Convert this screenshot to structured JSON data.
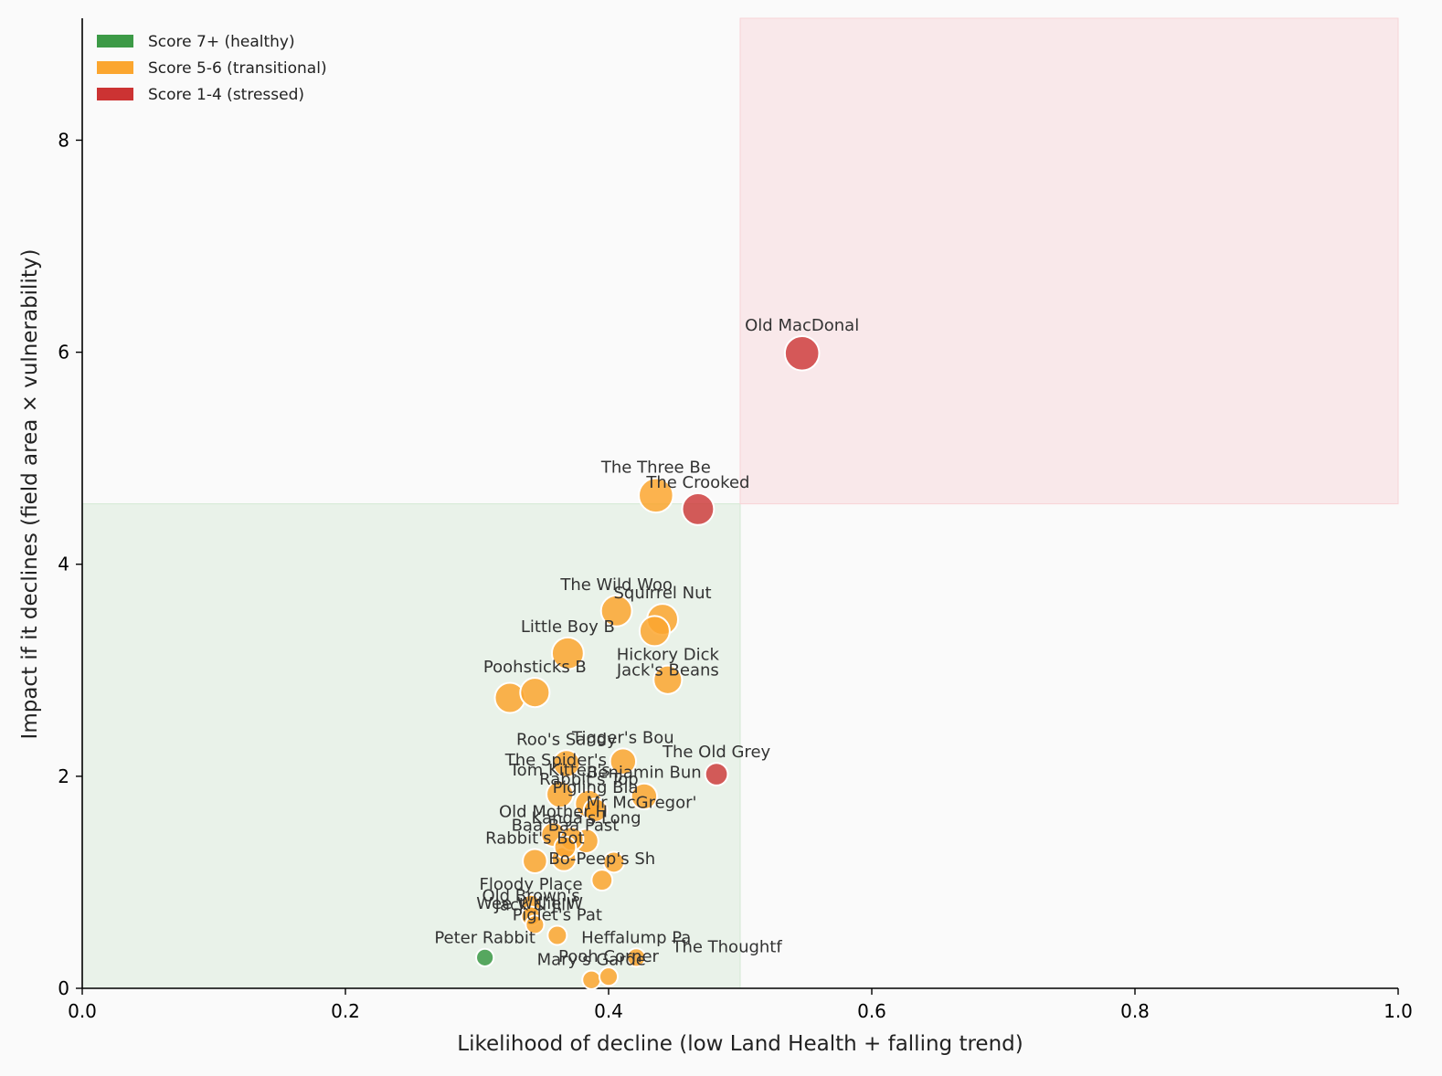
{
  "chart_data": {
    "type": "scatter",
    "title": "",
    "xlabel": "Likelihood of decline (low Land Health + falling trend)",
    "ylabel": "Impact if it declines (field area × vulnerability)",
    "xlim": [
      0.0,
      1.0
    ],
    "ylim": [
      0,
      9.15
    ],
    "xticks": [
      0.0,
      0.2,
      0.4,
      0.6,
      0.8,
      1.0
    ],
    "xtick_labels": [
      "0.0",
      "0.2",
      "0.4",
      "0.6",
      "0.8",
      "1.0"
    ],
    "yticks": [
      0,
      2,
      4,
      6,
      8
    ],
    "ytick_labels": [
      "0",
      "2",
      "4",
      "6",
      "8"
    ],
    "grid": false,
    "legend_position": "top-left",
    "regions": [
      {
        "x": [
          0.0,
          0.5
        ],
        "y": [
          0,
          4.57
        ],
        "color": "#d4e8d4"
      },
      {
        "x": [
          0.5,
          1.0
        ],
        "y": [
          4.57,
          9.15
        ],
        "color": "#f8d3d6"
      }
    ],
    "legend": [
      {
        "label": "Score 7+ (healthy)",
        "color": "#3c9a46"
      },
      {
        "label": "Score 5-6 (transitional)",
        "color": "#fba62f"
      },
      {
        "label": "Score 1-4 (stressed)",
        "color": "#cc3333"
      }
    ],
    "colors": {
      "healthy": "#3c9a46",
      "transitional": "#fba62f",
      "stressed": "#cc3333"
    },
    "points": [
      {
        "label": "Old MacDonal",
        "x": 0.547,
        "y": 5.99,
        "size": 3.0,
        "group": "stressed"
      },
      {
        "label": "The Three Be",
        "x": 0.436,
        "y": 4.65,
        "size": 3.0,
        "group": "transitional"
      },
      {
        "label": "The Crooked",
        "x": 0.468,
        "y": 4.52,
        "size": 2.7,
        "group": "stressed"
      },
      {
        "label": "The Wild Woo",
        "x": 0.406,
        "y": 3.56,
        "size": 2.6,
        "group": "transitional"
      },
      {
        "label": "Squirrel Nut",
        "x": 0.441,
        "y": 3.48,
        "size": 2.6,
        "group": "transitional"
      },
      {
        "label": "",
        "x": 0.435,
        "y": 3.37,
        "size": 2.5,
        "group": "transitional"
      },
      {
        "label": "Little Boy B",
        "x": 0.369,
        "y": 3.16,
        "size": 2.7,
        "group": "transitional"
      },
      {
        "label": "Hickory Dick",
        "x": 0.445,
        "y": 2.91,
        "size": 2.3,
        "group": "transitional"
      },
      {
        "label": "Jack's Beans",
        "x": 0.445,
        "y": 2.9,
        "size": 0.1,
        "group": "transitional"
      },
      {
        "label": "Poohsticks B",
        "x": 0.344,
        "y": 2.79,
        "size": 2.4,
        "group": "transitional"
      },
      {
        "label": "",
        "x": 0.325,
        "y": 2.74,
        "size": 2.5,
        "group": "transitional"
      },
      {
        "label": "Roo's Sandy",
        "x": 0.368,
        "y": 2.12,
        "size": 2.1,
        "group": "transitional"
      },
      {
        "label": "Tigger's Bou",
        "x": 0.411,
        "y": 2.14,
        "size": 2.0,
        "group": "transitional"
      },
      {
        "label": "The Old Grey",
        "x": 0.482,
        "y": 2.02,
        "size": 1.6,
        "group": "stressed"
      },
      {
        "label": "The Spider's",
        "x": 0.36,
        "y": 2.05,
        "size": 0.1,
        "group": "transitional"
      },
      {
        "label": "Tom Kitten's",
        "x": 0.363,
        "y": 1.83,
        "size": 2.1,
        "group": "transitional"
      },
      {
        "label": "Benjamin Bun",
        "x": 0.427,
        "y": 1.81,
        "size": 2.0,
        "group": "transitional"
      },
      {
        "label": "Rabbit's Top",
        "x": 0.385,
        "y": 1.74,
        "size": 2.2,
        "group": "transitional"
      },
      {
        "label": "Pigling Bla",
        "x": 0.39,
        "y": 1.68,
        "size": 1.7,
        "group": "transitional"
      },
      {
        "label": "Mr McGregor'",
        "x": 0.425,
        "y": 1.65,
        "size": 0.1,
        "group": "transitional"
      },
      {
        "label": "Old Mother H",
        "x": 0.358,
        "y": 1.45,
        "size": 1.8,
        "group": "transitional"
      },
      {
        "label": "",
        "x": 0.372,
        "y": 1.41,
        "size": 1.7,
        "group": "transitional"
      },
      {
        "label": "Kanga's Long",
        "x": 0.383,
        "y": 1.39,
        "size": 1.8,
        "group": "transitional"
      },
      {
        "label": "Baa Baa Past",
        "x": 0.367,
        "y": 1.33,
        "size": 1.5,
        "group": "transitional"
      },
      {
        "label": "Rabbit's Bot",
        "x": 0.344,
        "y": 1.2,
        "size": 1.8,
        "group": "transitional"
      },
      {
        "label": "",
        "x": 0.366,
        "y": 1.22,
        "size": 1.8,
        "group": "transitional"
      },
      {
        "label": "",
        "x": 0.404,
        "y": 1.19,
        "size": 1.4,
        "group": "transitional"
      },
      {
        "label": "Bo-Peep's Sh",
        "x": 0.395,
        "y": 1.02,
        "size": 1.4,
        "group": "transitional"
      },
      {
        "label": "Floody Place",
        "x": 0.341,
        "y": 0.79,
        "size": 1.2,
        "group": "transitional"
      },
      {
        "label": "Old Brown's",
        "x": 0.341,
        "y": 0.68,
        "size": 1.2,
        "group": "transitional"
      },
      {
        "label": "Jack & Jill'",
        "x": 0.344,
        "y": 0.6,
        "size": 1.1,
        "group": "transitional"
      },
      {
        "label": "Wee Willie W",
        "x": 0.34,
        "y": 0.7,
        "size": 0.1,
        "group": "transitional"
      },
      {
        "label": "Piglet's Pat",
        "x": 0.361,
        "y": 0.5,
        "size": 1.2,
        "group": "transitional"
      },
      {
        "label": "Peter Rabbit",
        "x": 0.306,
        "y": 0.29,
        "size": 1.0,
        "group": "healthy"
      },
      {
        "label": "Heffalump Pa",
        "x": 0.421,
        "y": 0.29,
        "size": 1.1,
        "group": "transitional"
      },
      {
        "label": "The Thoughtf",
        "x": 0.49,
        "y": 0.29,
        "size": 0.1,
        "group": "transitional"
      },
      {
        "label": "Mary's Garde",
        "x": 0.387,
        "y": 0.08,
        "size": 1.1,
        "group": "transitional"
      },
      {
        "label": "Pooh Corner",
        "x": 0.4,
        "y": 0.11,
        "size": 1.1,
        "group": "transitional"
      }
    ]
  }
}
